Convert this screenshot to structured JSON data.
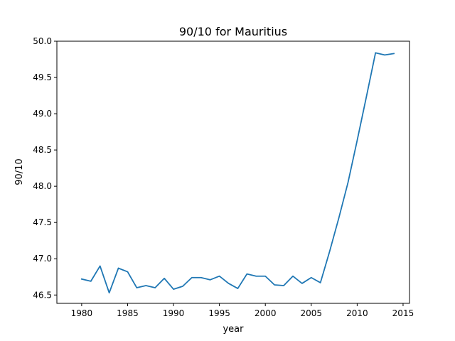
{
  "chart_data": {
    "type": "line",
    "title": "90/10 for Mauritius",
    "xlabel": "year",
    "ylabel": "90/10",
    "xlim": [
      1977.3,
      2015.7
    ],
    "ylim": [
      46.385,
      50.0
    ],
    "x_ticks": [
      1980,
      1985,
      1990,
      1995,
      2000,
      2005,
      2010,
      2015
    ],
    "y_ticks": [
      "46.5",
      "47.0",
      "47.5",
      "48.0",
      "48.5",
      "49.0",
      "49.5",
      "50.0"
    ],
    "grid": false,
    "series": [
      {
        "color": "#1f77b4",
        "x": [
          1980,
          1981,
          1982,
          1983,
          1984,
          1985,
          1986,
          1987,
          1988,
          1989,
          1990,
          1991,
          1992,
          1993,
          1994,
          1995,
          1996,
          1997,
          1998,
          1999,
          2000,
          2001,
          2002,
          2003,
          2004,
          2005,
          2006,
          2007,
          2008,
          2009,
          2010,
          2011,
          2012,
          2013,
          2014
        ],
        "y": [
          46.72,
          46.69,
          46.9,
          46.53,
          46.87,
          46.82,
          46.6,
          46.63,
          46.6,
          46.73,
          46.58,
          46.62,
          46.74,
          46.74,
          46.71,
          46.76,
          46.66,
          46.59,
          46.79,
          46.76,
          46.76,
          46.64,
          46.63,
          46.76,
          46.66,
          46.74,
          46.67,
          47.1,
          47.56,
          48.05,
          48.63,
          49.23,
          49.84,
          49.81,
          49.83
        ]
      }
    ]
  }
}
